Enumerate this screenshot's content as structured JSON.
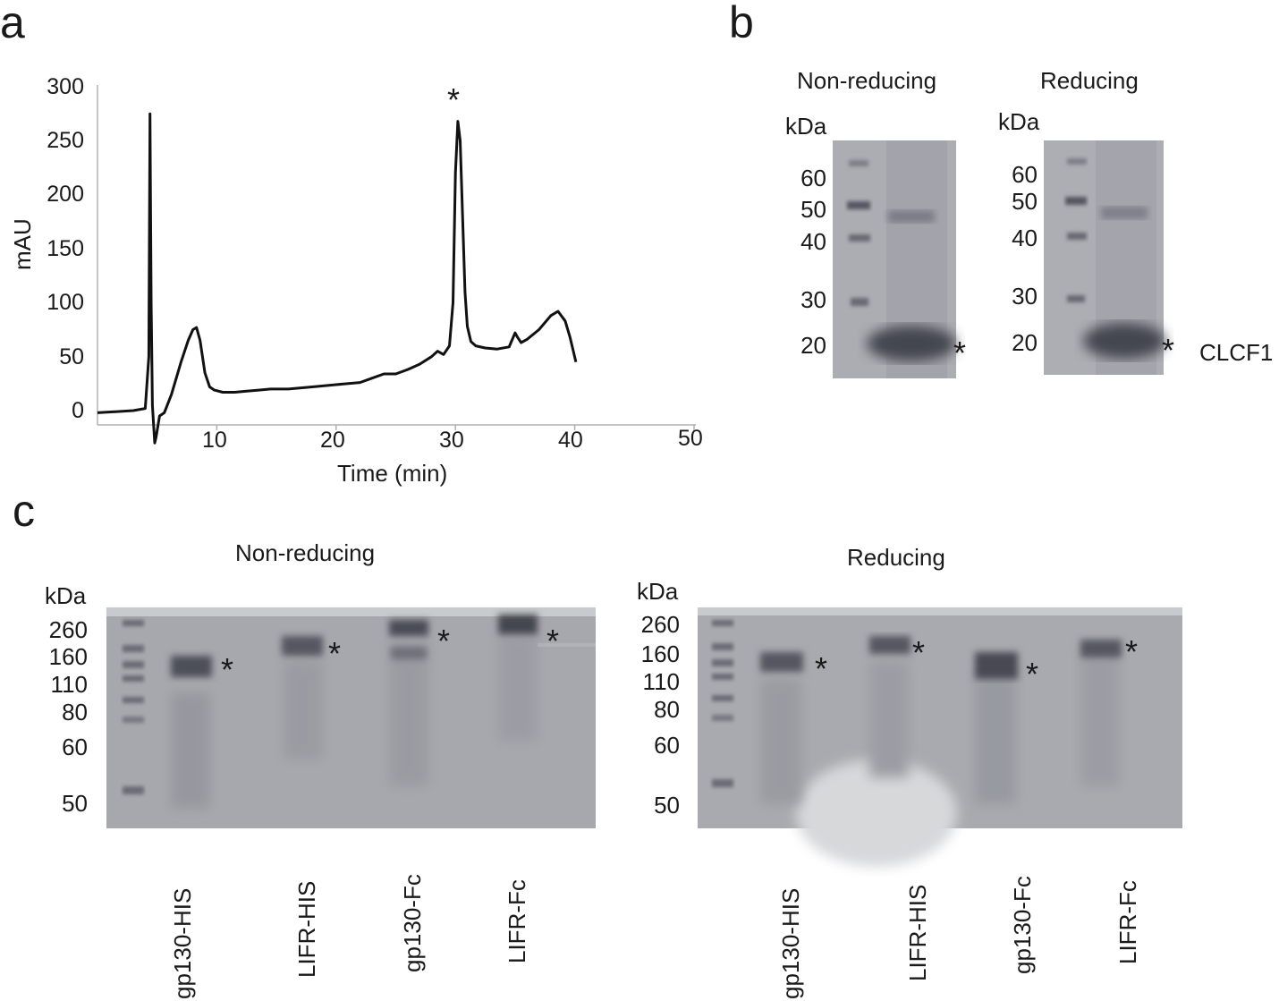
{
  "panel_a": {
    "letter": "a",
    "peak_marker": "*",
    "chart_data": {
      "type": "line",
      "title": "",
      "xlabel": "Time (min)",
      "ylabel": "mAU",
      "xlim": [
        0,
        50
      ],
      "ylim": [
        0,
        300
      ],
      "xticks": [
        "10",
        "20",
        "30",
        "40",
        "50"
      ],
      "yticks": [
        "0",
        "50",
        "100",
        "150",
        "200",
        "250",
        "300"
      ],
      "grid": false,
      "series": [
        {
          "x": [
            0,
            3,
            4.0,
            4.3,
            4.4,
            4.5,
            4.6,
            4.8,
            4.9,
            5.2,
            5.6,
            6.2,
            7.0,
            7.6,
            8.0,
            8.3,
            8.6,
            9.0,
            9.4,
            9.8,
            10.5,
            11.5,
            12.5,
            13.5,
            14.5,
            16,
            18,
            20,
            22,
            23,
            24,
            25,
            26,
            27,
            28,
            28.5,
            29,
            29.5,
            29.8,
            30.0,
            30.2,
            30.4,
            30.6,
            30.8,
            31.0,
            31.3,
            31.7,
            32.5,
            33.5,
            34.5,
            35.0,
            35.2,
            35.5,
            36.0,
            37.0,
            38.0,
            38.6,
            39.2,
            39.6,
            40.1
          ],
          "y": [
            -2,
            0,
            2,
            50,
            275,
            100,
            5,
            -30,
            -25,
            -5,
            -2,
            15,
            45,
            65,
            75,
            77,
            65,
            35,
            22,
            19,
            17,
            17,
            18,
            19,
            20,
            20,
            22,
            24,
            26,
            30,
            34,
            34,
            38,
            43,
            50,
            55,
            52,
            60,
            100,
            220,
            268,
            250,
            180,
            110,
            78,
            64,
            60,
            58,
            57,
            59,
            72,
            68,
            63,
            66,
            75,
            88,
            92,
            83,
            68,
            45
          ]
        }
      ]
    }
  },
  "panel_b": {
    "letter": "b",
    "gels": [
      {
        "title": "Non-reducing",
        "kda_label": "kDa",
        "markers": [
          "60",
          "50",
          "40",
          "30",
          "20"
        ],
        "band_marker": "*"
      },
      {
        "title": "Reducing",
        "kda_label": "kDa",
        "markers": [
          "60",
          "50",
          "40",
          "30",
          "20"
        ],
        "band_marker": "*",
        "band_label": "CLCF1"
      }
    ]
  },
  "panel_c": {
    "letter": "c",
    "gels": [
      {
        "title": "Non-reducing",
        "kda_label": "kDa",
        "markers": [
          "260",
          "160",
          "110",
          "80",
          "60",
          "50"
        ],
        "band_marker": "*",
        "lanes": [
          "gp130-HIS",
          "LIFR-HIS",
          "gp130-Fc",
          "LIFR-Fc"
        ]
      },
      {
        "title": "Reducing",
        "kda_label": "kDa",
        "markers": [
          "260",
          "160",
          "110",
          "80",
          "60",
          "50"
        ],
        "band_marker": "*",
        "lanes": [
          "gp130-HIS",
          "LIFR-HIS",
          "gp130-Fc",
          "LIFR-Fc"
        ]
      }
    ]
  },
  "colors": {
    "gel_background": "#a9aaaf",
    "band": "#4a4c55",
    "line": "#111111"
  }
}
